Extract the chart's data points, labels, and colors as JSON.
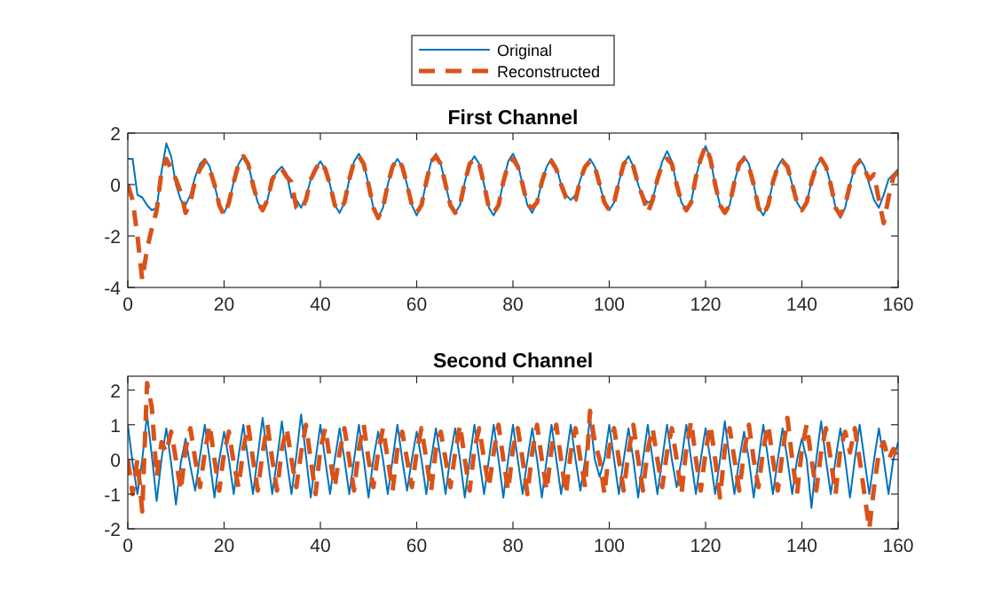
{
  "chart_data": [
    {
      "type": "line",
      "title": "First Channel",
      "legend": "top",
      "xlim": [
        0,
        160
      ],
      "xticks": [
        0,
        20,
        40,
        60,
        80,
        100,
        120,
        140,
        160
      ],
      "ylim": [
        -4,
        2
      ],
      "yticks": [
        -4,
        -2,
        0,
        2
      ],
      "x": [
        0,
        1,
        2,
        3,
        4,
        5,
        6,
        7,
        8,
        9,
        10,
        11,
        12,
        13,
        14,
        15,
        16,
        17,
        18,
        19,
        20,
        21,
        22,
        23,
        24,
        25,
        26,
        27,
        28,
        29,
        30,
        31,
        32,
        33,
        34,
        35,
        36,
        37,
        38,
        39,
        40,
        41,
        42,
        43,
        44,
        45,
        46,
        47,
        48,
        49,
        50,
        51,
        52,
        53,
        54,
        55,
        56,
        57,
        58,
        59,
        60,
        61,
        62,
        63,
        64,
        65,
        66,
        67,
        68,
        69,
        70,
        71,
        72,
        73,
        74,
        75,
        76,
        77,
        78,
        79,
        80,
        81,
        82,
        83,
        84,
        85,
        86,
        87,
        88,
        89,
        90,
        91,
        92,
        93,
        94,
        95,
        96,
        97,
        98,
        99,
        100,
        101,
        102,
        103,
        104,
        105,
        106,
        107,
        108,
        109,
        110,
        111,
        112,
        113,
        114,
        115,
        116,
        117,
        118,
        119,
        120,
        121,
        122,
        123,
        124,
        125,
        126,
        127,
        128,
        129,
        130,
        131,
        132,
        133,
        134,
        135,
        136,
        137,
        138,
        139,
        140,
        141,
        142,
        143,
        144,
        145,
        146,
        147,
        148,
        149,
        150,
        151,
        152,
        153,
        154,
        155,
        156,
        157,
        158,
        159,
        160
      ],
      "series": [
        {
          "name": "Original",
          "color": "#0072bd",
          "line_style": "solid",
          "values": [
            1.0,
            1.0,
            -0.4,
            -0.5,
            -0.8,
            -1.0,
            -0.9,
            0.5,
            1.6,
            1.1,
            0.0,
            -0.6,
            -0.8,
            -0.4,
            0.3,
            0.8,
            1.0,
            0.7,
            0.0,
            -0.8,
            -1.1,
            -0.7,
            0.1,
            0.8,
            1.1,
            0.8,
            0.0,
            -0.7,
            -1.0,
            -0.6,
            0.2,
            0.5,
            0.7,
            0.4,
            -0.5,
            -0.6,
            -0.9,
            -0.5,
            0.2,
            0.6,
            0.9,
            0.6,
            0.0,
            -0.8,
            -1.1,
            -0.7,
            0.2,
            0.9,
            1.2,
            0.8,
            0.0,
            -0.9,
            -1.3,
            -0.9,
            0.0,
            0.7,
            1.0,
            0.7,
            0.0,
            -0.8,
            -1.2,
            -0.8,
            0.1,
            0.9,
            1.2,
            0.8,
            0.0,
            -0.8,
            -1.1,
            -0.8,
            0.1,
            0.8,
            1.1,
            0.8,
            0.0,
            -0.9,
            -1.2,
            -0.8,
            0.1,
            0.9,
            1.2,
            0.8,
            0.0,
            -0.8,
            -1.1,
            -0.7,
            0.1,
            0.7,
            1.0,
            0.7,
            0.0,
            -0.4,
            -0.6,
            -0.4,
            0.2,
            0.7,
            1.0,
            0.7,
            0.0,
            -0.7,
            -1.0,
            -0.7,
            0.1,
            0.8,
            1.1,
            0.7,
            0.0,
            -0.5,
            -0.7,
            -0.6,
            0.2,
            0.9,
            1.3,
            0.9,
            0.0,
            -0.7,
            -1.0,
            -0.7,
            0.3,
            1.0,
            1.5,
            1.0,
            0.0,
            -0.8,
            -1.1,
            -0.8,
            0.1,
            0.8,
            1.1,
            0.8,
            0.0,
            -0.9,
            -1.2,
            -0.8,
            0.1,
            0.7,
            1.0,
            0.7,
            0.0,
            -0.7,
            -1.0,
            -0.7,
            0.1,
            0.7,
            1.0,
            0.7,
            0.0,
            -0.9,
            -1.3,
            -0.9,
            0.0,
            0.7,
            1.0,
            0.7,
            0.0,
            -0.6,
            -0.9,
            -0.4,
            0.2,
            0.4,
            0.6
          ]
        },
        {
          "name": "Reconstructed",
          "color": "#d95319",
          "line_style": "dashed",
          "values": [
            0.0,
            -0.6,
            -2.0,
            -3.7,
            -2.5,
            -1.7,
            -1.0,
            0.5,
            1.0,
            0.6,
            0.2,
            -0.3,
            -1.1,
            -0.7,
            0.2,
            0.6,
            0.9,
            0.6,
            0.0,
            -0.8,
            -1.2,
            -0.7,
            0.1,
            0.8,
            1.1,
            0.8,
            0.0,
            -0.7,
            -1.0,
            -0.6,
            0.2,
            0.5,
            0.6,
            0.3,
            0.1,
            -0.9,
            -1.0,
            -0.6,
            0.2,
            0.6,
            0.9,
            0.6,
            0.0,
            -0.8,
            -1.0,
            -0.7,
            0.2,
            0.9,
            1.1,
            0.8,
            0.0,
            -0.9,
            -1.3,
            -0.9,
            0.0,
            0.7,
            1.0,
            0.7,
            0.0,
            -0.8,
            -1.1,
            -0.8,
            0.1,
            0.9,
            1.1,
            0.8,
            0.0,
            -0.8,
            -1.1,
            -0.8,
            0.1,
            0.8,
            1.0,
            0.8,
            0.0,
            -0.9,
            -1.1,
            -0.8,
            0.1,
            0.8,
            1.0,
            0.7,
            0.0,
            -0.8,
            -0.9,
            -0.7,
            0.1,
            0.7,
            0.9,
            0.6,
            0.0,
            -0.5,
            -0.7,
            -0.6,
            0.2,
            0.7,
            0.9,
            0.7,
            0.0,
            -0.7,
            -1.0,
            -0.7,
            0.1,
            0.8,
            1.0,
            0.7,
            0.0,
            -0.5,
            -1.1,
            -0.6,
            0.2,
            0.8,
            1.0,
            0.8,
            0.0,
            -0.7,
            -1.0,
            -0.7,
            0.3,
            1.0,
            1.5,
            1.0,
            0.0,
            -0.8,
            -1.1,
            -0.8,
            0.1,
            0.8,
            1.0,
            0.7,
            0.0,
            -0.9,
            -1.2,
            -0.8,
            0.1,
            0.7,
            0.9,
            0.7,
            0.0,
            -0.7,
            -1.0,
            -0.7,
            0.1,
            0.7,
            1.0,
            0.7,
            0.0,
            -0.9,
            -1.2,
            -0.8,
            0.0,
            0.7,
            0.9,
            0.6,
            0.2,
            0.4,
            -0.6,
            -1.5,
            -0.5,
            0.3,
            0.5
          ]
        }
      ]
    },
    {
      "type": "line",
      "title": "Second Channel",
      "xlim": [
        0,
        160
      ],
      "xticks": [
        0,
        20,
        40,
        60,
        80,
        100,
        120,
        140,
        160
      ],
      "ylim": [
        -2,
        2.4
      ],
      "yticks": [
        -2,
        -1,
        0,
        1,
        2
      ],
      "x": [
        0,
        1,
        2,
        3,
        4,
        5,
        6,
        7,
        8,
        9,
        10,
        11,
        12,
        13,
        14,
        15,
        16,
        17,
        18,
        19,
        20,
        21,
        22,
        23,
        24,
        25,
        26,
        27,
        28,
        29,
        30,
        31,
        32,
        33,
        34,
        35,
        36,
        37,
        38,
        39,
        40,
        41,
        42,
        43,
        44,
        45,
        46,
        47,
        48,
        49,
        50,
        51,
        52,
        53,
        54,
        55,
        56,
        57,
        58,
        59,
        60,
        61,
        62,
        63,
        64,
        65,
        66,
        67,
        68,
        69,
        70,
        71,
        72,
        73,
        74,
        75,
        76,
        77,
        78,
        79,
        80,
        81,
        82,
        83,
        84,
        85,
        86,
        87,
        88,
        89,
        90,
        91,
        92,
        93,
        94,
        95,
        96,
        97,
        98,
        99,
        100,
        101,
        102,
        103,
        104,
        105,
        106,
        107,
        108,
        109,
        110,
        111,
        112,
        113,
        114,
        115,
        116,
        117,
        118,
        119,
        120,
        121,
        122,
        123,
        124,
        125,
        126,
        127,
        128,
        129,
        130,
        131,
        132,
        133,
        134,
        135,
        136,
        137,
        138,
        139,
        140,
        141,
        142,
        143,
        144,
        145,
        146,
        147,
        148,
        149,
        150,
        151,
        152,
        153,
        154,
        155,
        156,
        157,
        158,
        159,
        160
      ],
      "series": [
        {
          "color": "#0072bd",
          "line_style": "solid",
          "values": [
            1.0,
            -0.1,
            -1.0,
            0.0,
            1.3,
            0.1,
            -1.2,
            0.0,
            0.9,
            -0.1,
            -1.3,
            -0.1,
            0.6,
            -0.2,
            -0.9,
            0.1,
            1.0,
            0.0,
            -1.1,
            0.0,
            0.8,
            0.0,
            -1.0,
            0.1,
            1.0,
            0.0,
            -1.0,
            0.1,
            1.2,
            0.1,
            -1.0,
            0.0,
            1.1,
            0.0,
            -1.0,
            0.1,
            1.3,
            0.1,
            -1.1,
            0.0,
            1.0,
            0.0,
            -1.0,
            0.0,
            0.9,
            0.0,
            -1.0,
            0.0,
            1.0,
            0.0,
            -1.1,
            0.0,
            0.8,
            0.0,
            -1.0,
            0.0,
            1.0,
            0.0,
            -0.9,
            0.0,
            0.8,
            0.0,
            -1.0,
            0.0,
            0.9,
            0.0,
            -1.0,
            0.1,
            0.9,
            0.0,
            -1.1,
            0.0,
            1.0,
            0.0,
            -1.0,
            0.0,
            1.0,
            0.0,
            -1.1,
            0.0,
            1.0,
            0.0,
            -1.0,
            0.0,
            0.9,
            0.0,
            -1.1,
            0.0,
            1.0,
            0.0,
            -1.0,
            0.0,
            1.0,
            0.0,
            -0.9,
            0.0,
            1.2,
            0.0,
            -0.5,
            0.0,
            1.0,
            0.0,
            -1.0,
            0.0,
            0.9,
            0.0,
            -1.1,
            0.0,
            1.0,
            0.0,
            -1.0,
            0.0,
            1.0,
            0.0,
            -0.8,
            0.0,
            1.0,
            0.0,
            -1.0,
            0.0,
            0.9,
            0.0,
            -1.0,
            0.0,
            1.1,
            0.0,
            -1.0,
            0.0,
            0.8,
            0.0,
            -1.1,
            0.0,
            1.0,
            0.0,
            -1.0,
            0.0,
            0.9,
            0.0,
            -1.0,
            0.0,
            0.6,
            0.0,
            -1.4,
            0.0,
            1.1,
            0.0,
            -1.0,
            0.0,
            0.9,
            0.0,
            -1.1,
            0.0,
            1.0,
            0.0,
            -1.0,
            0.0,
            0.9,
            0.0,
            -1.0,
            0.0,
            0.5
          ]
        },
        {
          "color": "#d95319",
          "line_style": "dashed",
          "values": [
            0.0,
            -1.0,
            0.0,
            -1.5,
            2.2,
            1.5,
            -0.5,
            0.5,
            0.2,
            0.8,
            0.0,
            -0.9,
            0.3,
            0.9,
            0.0,
            -0.8,
            0.2,
            1.0,
            0.0,
            -0.9,
            0.2,
            0.8,
            -0.1,
            -0.8,
            0.3,
            1.0,
            0.0,
            -0.9,
            0.2,
            1.0,
            0.0,
            -0.9,
            0.3,
            0.9,
            0.0,
            -0.8,
            0.2,
            1.0,
            0.0,
            -1.0,
            0.3,
            0.9,
            0.0,
            -0.8,
            0.2,
            0.9,
            0.0,
            -0.9,
            0.3,
            1.0,
            0.0,
            -0.8,
            0.2,
            0.9,
            0.0,
            -0.9,
            0.3,
            0.8,
            0.0,
            -0.8,
            0.2,
            0.9,
            0.0,
            -0.9,
            0.3,
            0.8,
            0.0,
            -0.8,
            0.2,
            1.0,
            0.0,
            -0.9,
            0.3,
            0.9,
            0.0,
            -0.8,
            0.2,
            1.0,
            0.0,
            -0.9,
            0.3,
            0.9,
            0.0,
            -1.0,
            0.2,
            1.0,
            0.0,
            -0.9,
            0.3,
            1.0,
            0.0,
            -1.0,
            0.2,
            0.9,
            0.0,
            -0.8,
            1.4,
            0.5,
            0.0,
            -1.0,
            0.3,
            0.9,
            0.0,
            -0.9,
            0.2,
            1.0,
            0.0,
            -0.9,
            0.3,
            0.9,
            0.0,
            -0.8,
            0.2,
            0.9,
            0.0,
            -1.0,
            0.3,
            1.1,
            0.0,
            -0.9,
            0.2,
            1.0,
            0.0,
            -1.1,
            0.3,
            0.9,
            0.0,
            -0.9,
            0.2,
            1.0,
            0.0,
            -0.8,
            0.3,
            1.0,
            0.0,
            -0.9,
            0.2,
            1.2,
            0.0,
            -1.0,
            0.3,
            1.0,
            0.0,
            -0.9,
            0.2,
            0.9,
            0.0,
            -1.0,
            0.3,
            0.8,
            0.2,
            0.9,
            0.0,
            -1.0,
            -2.0,
            -0.8,
            0.2,
            0.5,
            0.0,
            0.3,
            0.0
          ]
        }
      ]
    }
  ]
}
